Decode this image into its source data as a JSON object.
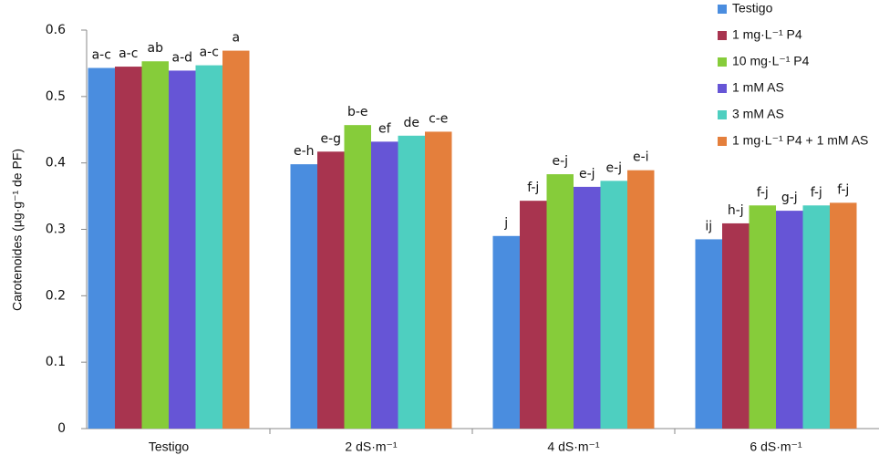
{
  "chart_data": {
    "type": "bar",
    "y_label": "Carotenoides (µg·g⁻¹ de PF)",
    "categories": [
      "Testigo",
      "2 dS·m⁻¹",
      "4 dS·m⁻¹",
      "6 dS·m⁻¹"
    ],
    "series": [
      {
        "name": "Testigo",
        "color": "#4a8ddf",
        "values": [
          0.543,
          0.398,
          0.29,
          0.285
        ],
        "letters": [
          "a-c",
          "e-h",
          "j",
          "ij"
        ]
      },
      {
        "name": "1 mg·L⁻¹ P4",
        "color": "#a8344f",
        "values": [
          0.545,
          0.417,
          0.343,
          0.309
        ],
        "letters": [
          "a-c",
          "e-g",
          "f-j",
          "h-j"
        ]
      },
      {
        "name": "10 mg·L⁻¹ P4",
        "color": "#86cc3a",
        "values": [
          0.553,
          0.457,
          0.383,
          0.336
        ],
        "letters": [
          "ab",
          "b-e",
          "e-j",
          "f-j"
        ]
      },
      {
        "name": "1 mM AS",
        "color": "#6655d6",
        "values": [
          0.539,
          0.432,
          0.364,
          0.328
        ],
        "letters": [
          "a-d",
          "ef",
          "e-j",
          "g-j"
        ]
      },
      {
        "name": "3 mM AS",
        "color": "#4ecfc0",
        "values": [
          0.547,
          0.441,
          0.373,
          0.336
        ],
        "letters": [
          "a-c",
          "de",
          "e-j",
          "f-j"
        ]
      },
      {
        "name": "1 mg·L⁻¹ P4 + 1 mM AS",
        "color": "#e47f3c",
        "values": [
          0.569,
          0.447,
          0.389,
          0.34
        ],
        "letters": [
          "a",
          "c-e",
          "e-i",
          "f-j"
        ]
      }
    ],
    "ylim": [
      0,
      0.6
    ],
    "yticks": [
      0,
      0.1,
      0.2,
      0.3,
      0.4,
      0.5,
      0.6
    ],
    "grid": false,
    "legend": "top-right"
  }
}
